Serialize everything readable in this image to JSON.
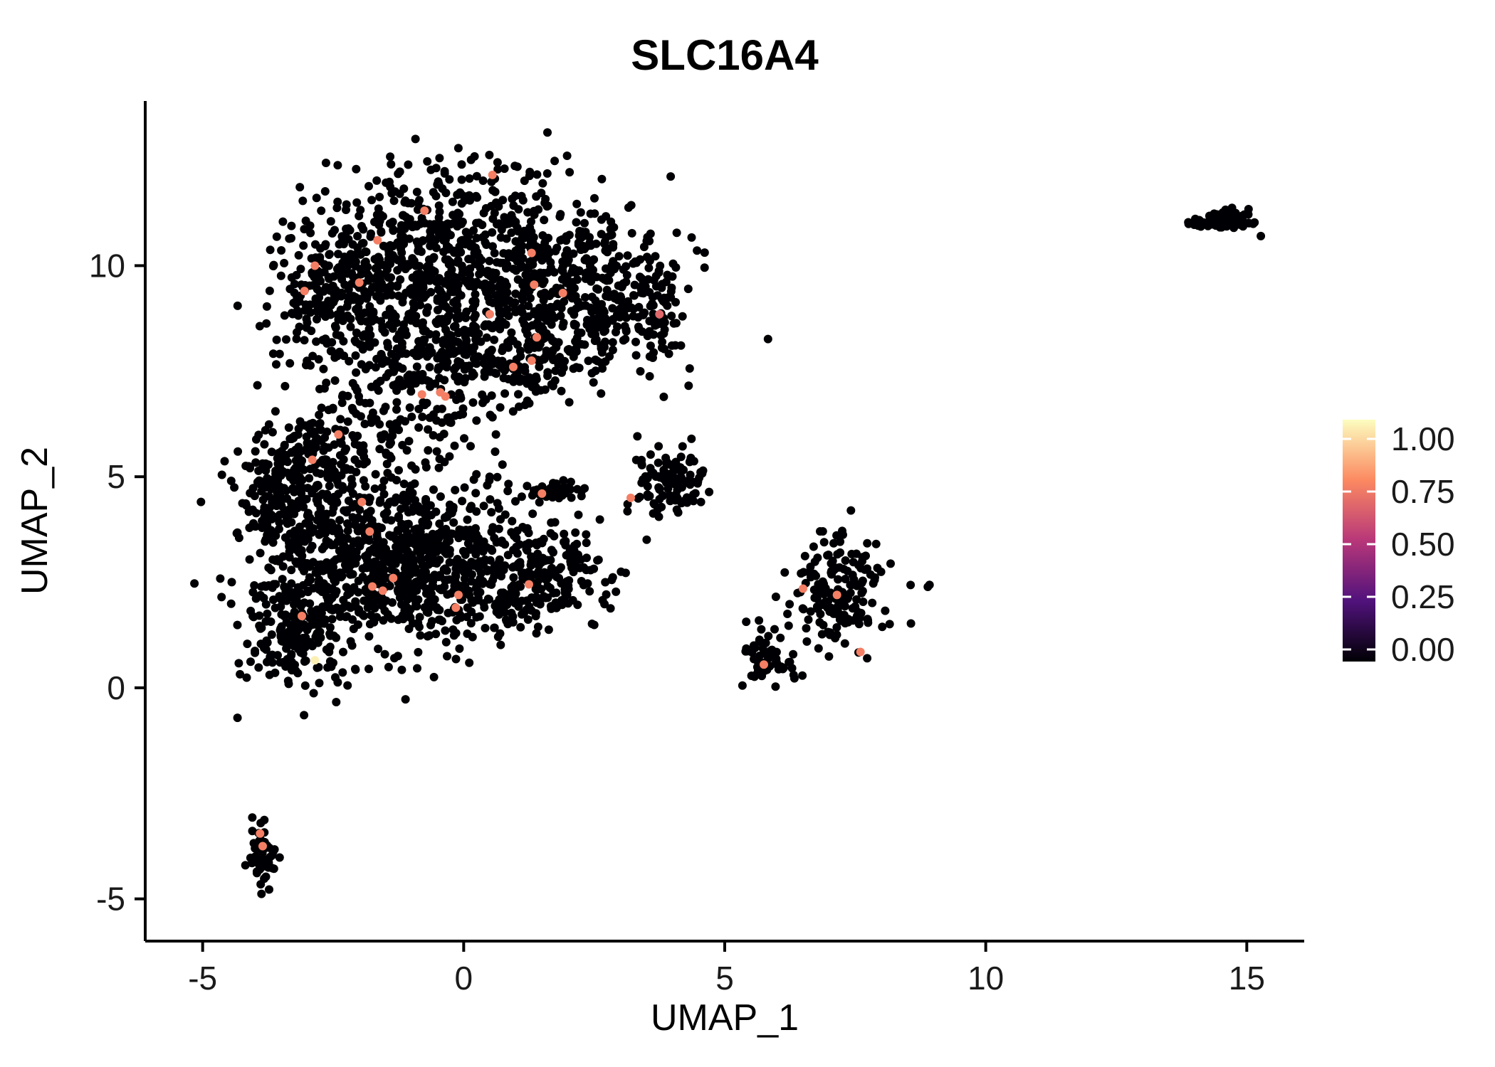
{
  "figure": {
    "background": "#ffffff"
  },
  "chart_data": {
    "type": "scatter",
    "title": "SLC16A4",
    "xlabel": "UMAP_1",
    "ylabel": "UMAP_2",
    "xlim": [
      -6.1,
      16.1
    ],
    "ylim": [
      -6.0,
      13.9
    ],
    "x_ticks": [
      -5,
      0,
      5,
      10,
      15
    ],
    "y_ticks": [
      -5,
      0,
      5,
      10
    ],
    "grid": false,
    "legend_position": "right",
    "point_radius_px": 6,
    "seed": 42,
    "base_value": 0,
    "highlight_value_default": 0.72,
    "colorbar": {
      "range": [
        0,
        1
      ],
      "tick_labels": [
        "1.00",
        "0.75",
        "0.50",
        "0.25",
        "0.00"
      ],
      "tick_values": [
        1.0,
        0.75,
        0.5,
        0.25,
        0.0
      ],
      "stops": [
        {
          "v": 0.0,
          "color": "#000004"
        },
        {
          "v": 0.25,
          "color": "#51127c"
        },
        {
          "v": 0.5,
          "color": "#b73779"
        },
        {
          "v": 0.75,
          "color": "#fc8961"
        },
        {
          "v": 1.0,
          "color": "#fcfdbf"
        }
      ]
    },
    "clusters": [
      {
        "cx": -0.1,
        "cy": 10.7,
        "sx": 1.5,
        "sy": 0.85,
        "n": 480
      },
      {
        "cx": 0.4,
        "cy": 9.0,
        "sx": 1.6,
        "sy": 0.85,
        "n": 430
      },
      {
        "cx": -2.4,
        "cy": 9.3,
        "sx": 0.65,
        "sy": 0.9,
        "n": 240
      },
      {
        "cx": 0.3,
        "cy": 7.7,
        "sx": 1.2,
        "sy": 0.55,
        "n": 240
      },
      {
        "cx": 2.7,
        "cy": 9.4,
        "sx": 0.75,
        "sy": 0.8,
        "n": 190
      },
      {
        "cx": -1.3,
        "cy": 6.4,
        "sx": 0.9,
        "sy": 0.6,
        "n": 110
      },
      {
        "cx": 3.7,
        "cy": 8.9,
        "sx": 0.2,
        "sy": 0.45,
        "n": 35
      },
      {
        "cx": -2.6,
        "cy": 3.9,
        "sx": 0.8,
        "sy": 1.0,
        "n": 380
      },
      {
        "cx": -1.3,
        "cy": 2.6,
        "sx": 1.0,
        "sy": 0.9,
        "n": 380
      },
      {
        "cx": -0.2,
        "cy": 3.4,
        "sx": 1.0,
        "sy": 0.75,
        "n": 240
      },
      {
        "cx": -3.3,
        "cy": 1.3,
        "sx": 0.55,
        "sy": 0.75,
        "n": 190
      },
      {
        "cx": 0.9,
        "cy": 2.3,
        "sx": 0.9,
        "sy": 0.5,
        "n": 150
      },
      {
        "cx": 1.9,
        "cy": 2.9,
        "sx": 0.4,
        "sy": 0.5,
        "n": 80
      },
      {
        "cx": -3.6,
        "cy": 4.7,
        "sx": 0.35,
        "sy": 0.8,
        "n": 100
      },
      {
        "cx": -2.9,
        "cy": 5.6,
        "sx": 0.35,
        "sy": 0.45,
        "n": 60
      },
      {
        "cx": 3.9,
        "cy": 4.9,
        "sx": 0.33,
        "sy": 0.42,
        "n": 110
      },
      {
        "cx": 1.75,
        "cy": 4.7,
        "sx": 0.28,
        "sy": 0.14,
        "n": 40
      },
      {
        "cx": 5.8,
        "cy": 0.75,
        "sx": 0.28,
        "sy": 0.3,
        "n": 60
      },
      {
        "cx": 7.2,
        "cy": 2.3,
        "sx": 0.5,
        "sy": 0.65,
        "n": 170
      },
      {
        "cx": -3.85,
        "cy": -3.9,
        "sx": 0.13,
        "sy": 0.38,
        "n": 60
      },
      {
        "cx": 14.55,
        "cy": 11.05,
        "sx": 0.3,
        "sy": 0.12,
        "n": 85
      }
    ],
    "highlight_points": [
      {
        "x": 0.55,
        "y": 12.15
      },
      {
        "x": -0.75,
        "y": 11.3
      },
      {
        "x": -1.65,
        "y": 10.6
      },
      {
        "x": -2.85,
        "y": 10.0
      },
      {
        "x": -3.05,
        "y": 9.4
      },
      {
        "x": -2.0,
        "y": 9.6
      },
      {
        "x": 1.3,
        "y": 10.3
      },
      {
        "x": 1.35,
        "y": 9.55
      },
      {
        "x": 1.9,
        "y": 9.35
      },
      {
        "x": 3.75,
        "y": 8.85,
        "v": 0.65
      },
      {
        "x": 0.5,
        "y": 8.85
      },
      {
        "x": 1.4,
        "y": 8.3
      },
      {
        "x": 0.95,
        "y": 7.6
      },
      {
        "x": -0.45,
        "y": 7.0
      },
      {
        "x": 1.3,
        "y": 7.75
      },
      {
        "x": -0.35,
        "y": 6.9
      },
      {
        "x": -2.4,
        "y": 6.0
      },
      {
        "x": -0.8,
        "y": 6.95
      },
      {
        "x": 1.5,
        "y": 4.6
      },
      {
        "x": 3.2,
        "y": 4.5
      },
      {
        "x": -2.9,
        "y": 5.4
      },
      {
        "x": -1.95,
        "y": 4.4
      },
      {
        "x": -1.8,
        "y": 3.7
      },
      {
        "x": -1.75,
        "y": 2.4
      },
      {
        "x": -1.35,
        "y": 2.6
      },
      {
        "x": -0.1,
        "y": 2.2
      },
      {
        "x": 1.25,
        "y": 2.45
      },
      {
        "x": -3.1,
        "y": 1.7
      },
      {
        "x": -0.15,
        "y": 1.9
      },
      {
        "x": -1.55,
        "y": 2.3
      },
      {
        "x": 6.5,
        "y": 2.35
      },
      {
        "x": 7.15,
        "y": 2.2
      },
      {
        "x": 7.6,
        "y": 0.85
      },
      {
        "x": 5.75,
        "y": 0.55
      },
      {
        "x": -3.9,
        "y": -3.45
      },
      {
        "x": -3.85,
        "y": -3.75
      },
      {
        "x": -2.85,
        "y": 0.65,
        "v": 0.97
      }
    ]
  }
}
